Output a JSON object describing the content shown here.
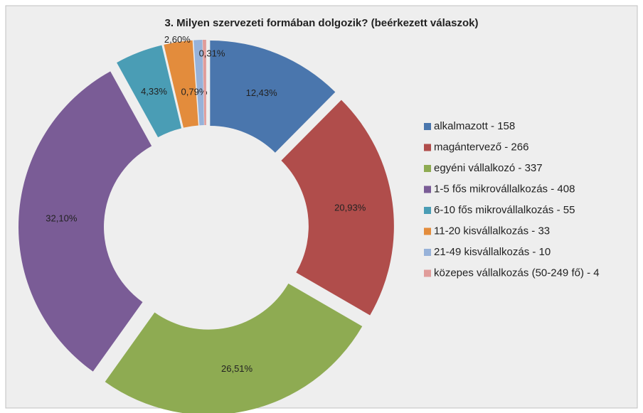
{
  "chart_data": {
    "type": "donut",
    "title": "3. Milyen szervezeti formában dolgozik? (beérkezett válaszok)",
    "categories": [
      "alkalmazott - 158",
      "magántervező - 266",
      "egyéni vállalkozó - 337",
      "1-5 fős mikrovállalkozás - 408",
      "6-10 fős mikrovállalkozás - 55",
      "11-20 kisvállalkozás - 33",
      "21-49 kisvállalkozás - 10",
      "közepes vállalkozás (50-249 fő) - 4"
    ],
    "values": [
      12.43,
      20.93,
      26.51,
      32.1,
      4.33,
      2.6,
      0.79,
      0.31
    ],
    "value_labels": [
      "12,43%",
      "20,93%",
      "26,51%",
      "32,10%",
      "4,33%",
      "2,60%",
      "0,79%",
      "0,31%"
    ],
    "colors": [
      "#4a76ad",
      "#b04d4b",
      "#8eab52",
      "#7a5c96",
      "#4a9db5",
      "#e38c3c",
      "#97b2d9",
      "#e09c9a"
    ],
    "legend": "right"
  }
}
